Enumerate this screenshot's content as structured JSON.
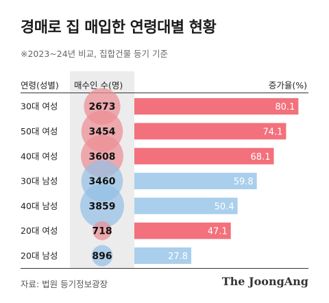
{
  "title": "경매로 집 매입한 연령대별 현황",
  "subtitle": "※2023~24년 비교, 집합건물 등기 기준",
  "columns": {
    "group": "연령(성별)",
    "count": "매수인 수(명)",
    "rate": "증가율(%)"
  },
  "colors": {
    "female_bar": "#f2717c",
    "male_bar": "#a9cfec",
    "female_bubble": "#ec8e94",
    "male_bubble": "#94bfe4"
  },
  "chart_data": {
    "type": "bar",
    "categories": [
      "30대 여성",
      "50대 여성",
      "40대 여성",
      "30대 남성",
      "40대 남성",
      "20대 여성",
      "20대 남성"
    ],
    "gender": [
      "female",
      "female",
      "female",
      "male",
      "male",
      "female",
      "male"
    ],
    "buyers": [
      2673,
      3454,
      3608,
      3460,
      3859,
      718,
      896
    ],
    "buyers_labels": [
      "2673",
      "3454",
      "3608",
      "3460",
      "3859",
      "718",
      "896"
    ],
    "values": [
      80.1,
      74.1,
      68.1,
      59.8,
      50.4,
      47.1,
      27.8
    ],
    "value_labels": [
      "80.1",
      "74.1",
      "68.1",
      "59.8",
      "50.4",
      "47.1",
      "27.8"
    ],
    "xlim": [
      0,
      85
    ],
    "grid": false
  },
  "footer": {
    "source": "자료: 법원 등기정보광장",
    "brand": "The JoongAng"
  }
}
